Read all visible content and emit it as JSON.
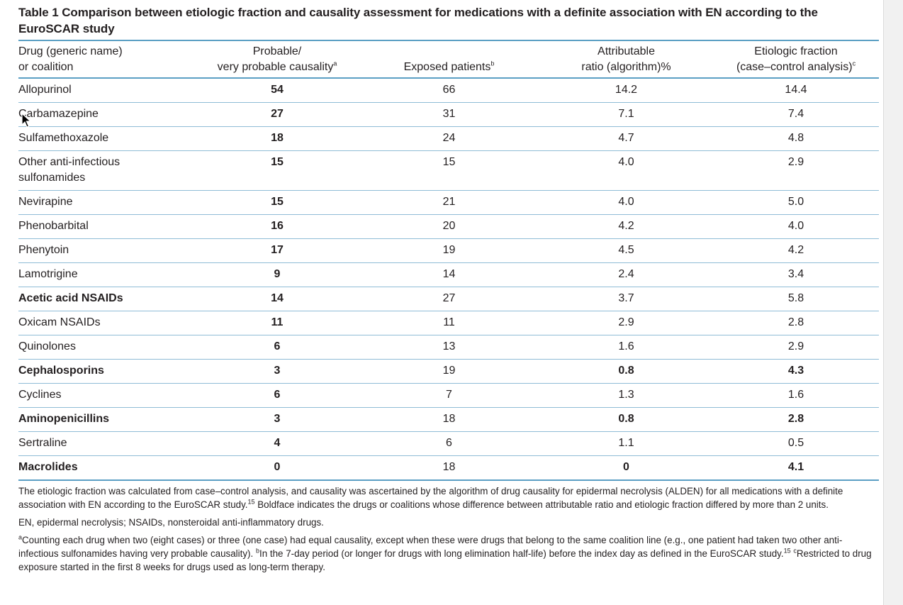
{
  "title": "Table 1 Comparison between etiologic fraction and causality assessment for medications with a definite association with EN according to the EuroSCAR study",
  "headers": {
    "drug_line1": "Drug (generic name)",
    "drug_line2": "or coalition",
    "probable_line1": "Probable/",
    "probable_line2": "very probable causality",
    "probable_sup": "a",
    "exposed": "Exposed patients",
    "exposed_sup": "b",
    "attr_line1": "Attributable",
    "attr_line2": "ratio (algorithm)%",
    "etio_line1": "Etiologic fraction",
    "etio_line2": "(case–control analysis)",
    "etio_sup": "c"
  },
  "rows": [
    {
      "drug": "Allopurinol",
      "probable": "54",
      "exposed": "66",
      "attributable": "14.2",
      "etiologic": "14.4"
    },
    {
      "drug": "Carbamazepine",
      "probable": "27",
      "exposed": "31",
      "attributable": "7.1",
      "etiologic": "7.4"
    },
    {
      "drug": "Sulfamethoxazole",
      "probable": "18",
      "exposed": "24",
      "attributable": "4.7",
      "etiologic": "4.8"
    },
    {
      "drug": "Other anti-infectious sulfonamides",
      "probable": "15",
      "exposed": "15",
      "attributable": "4.0",
      "etiologic": "2.9"
    },
    {
      "drug": "Nevirapine",
      "probable": "15",
      "exposed": "21",
      "attributable": "4.0",
      "etiologic": "5.0"
    },
    {
      "drug": "Phenobarbital",
      "probable": "16",
      "exposed": "20",
      "attributable": "4.2",
      "etiologic": "4.0"
    },
    {
      "drug": "Phenytoin",
      "probable": "17",
      "exposed": "19",
      "attributable": "4.5",
      "etiologic": "4.2"
    },
    {
      "drug": "Lamotrigine",
      "probable": "9",
      "exposed": "14",
      "attributable": "2.4",
      "etiologic": "3.4"
    },
    {
      "drug": "Acetic acid NSAIDs",
      "probable": "14",
      "exposed": "27",
      "attributable": "3.7",
      "etiologic": "5.8"
    },
    {
      "drug": "Oxicam NSAIDs",
      "probable": "11",
      "exposed": "11",
      "attributable": "2.9",
      "etiologic": "2.8"
    },
    {
      "drug": "Quinolones",
      "probable": "6",
      "exposed": "13",
      "attributable": "1.6",
      "etiologic": "2.9"
    },
    {
      "drug": "Cephalosporins",
      "probable": "3",
      "exposed": "19",
      "attributable": "0.8",
      "etiologic": "4.3"
    },
    {
      "drug": "Cyclines",
      "probable": "6",
      "exposed": "7",
      "attributable": "1.3",
      "etiologic": "1.6"
    },
    {
      "drug": "Aminopenicillins",
      "probable": "3",
      "exposed": "18",
      "attributable": "0.8",
      "etiologic": "2.8"
    },
    {
      "drug": "Sertraline",
      "probable": "4",
      "exposed": "6",
      "attributable": "1.1",
      "etiologic": "0.5"
    },
    {
      "drug": "Macrolides",
      "probable": "0",
      "exposed": "18",
      "attributable": "0",
      "etiologic": "4.1"
    }
  ],
  "notes": {
    "n1_a": "The etiologic fraction was calculated from case–control analysis, and causality was ascertained by the algorithm of drug causality for epidermal necrolysis (ALDEN) for all medications with a definite association with EN according to the EuroSCAR study.",
    "n1_ref": "15",
    "n1_b": " Boldface indicates the drugs or coalitions whose difference between attributable ratio and etiologic fraction differed by more than 2 units.",
    "n2": "EN, epidermal necrolysis; NSAIDs, nonsteroidal anti-inflammatory drugs.",
    "n3_sup_a": "a",
    "n3_a": "Counting each drug when two (eight cases) or three (one case) had equal causality, except when these were drugs that belong to the same coalition line (e.g., one patient had taken two other anti-infectious sulfonamides having very probable causality).",
    "n3_sup_b": "b",
    "n3_b": "In the 7-day period (or longer for drugs with long elimination half-life) before the index day as defined in the EuroSCAR study.",
    "n3_ref": "15",
    "n3_sup_c": "c",
    "n3_c": "Restricted to drug exposure started in the first 8 weeks for drugs used as long-term therapy."
  }
}
